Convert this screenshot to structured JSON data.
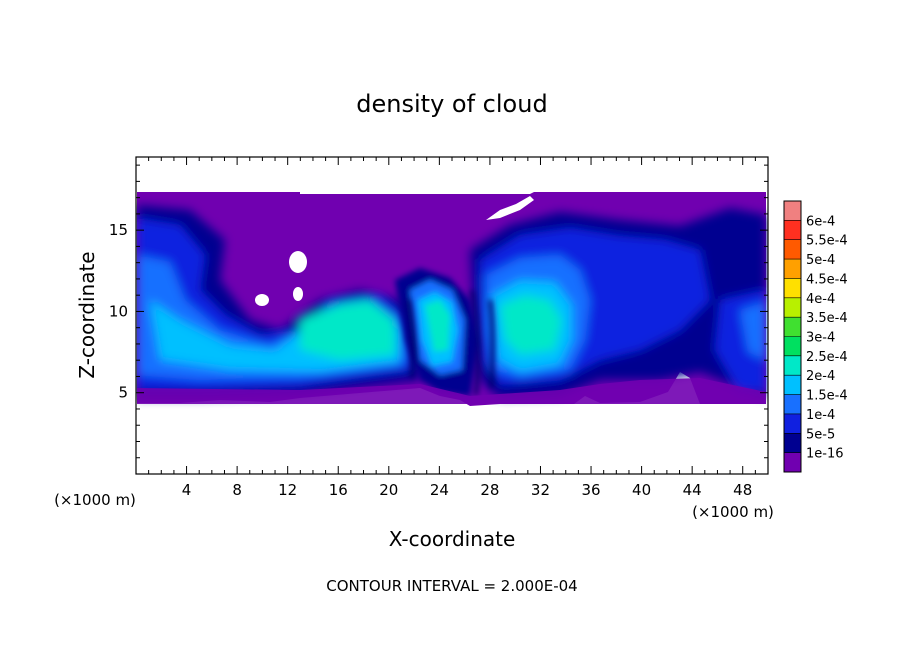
{
  "chart_data": {
    "type": "heatmap",
    "title": "density of cloud",
    "xlabel": "X-coordinate",
    "ylabel": "Z-coordinate",
    "x_unit": "(×1000 m)",
    "x_unit_right": "(×1000 m)",
    "xlim": [
      0,
      50
    ],
    "ylim": [
      0,
      19.5
    ],
    "x_ticks": [
      4,
      8,
      12,
      16,
      20,
      24,
      28,
      32,
      36,
      40,
      44,
      48
    ],
    "y_ticks": [
      5,
      10,
      15
    ],
    "footer": "CONTOUR INTERVAL = 2.000E-04",
    "colorbar": {
      "labels": [
        "6e-4",
        "5.5e-4",
        "5e-4",
        "4.5e-4",
        "4e-4",
        "3.5e-4",
        "3e-4",
        "2.5e-4",
        "2e-4",
        "1.5e-4",
        "1e-4",
        "5e-5",
        "1e-16"
      ],
      "colors": [
        "#f08080",
        "#ff3020",
        "#ff5a00",
        "#ffa000",
        "#ffe000",
        "#b8f000",
        "#40e030",
        "#00e060",
        "#00e8c8",
        "#00c0ff",
        "#1870ff",
        "#1020e0",
        "#000090",
        "#7000b0"
      ]
    },
    "features": {
      "cloud_base_z": 4.5,
      "cloud_top_z": 17.7,
      "max_density_region": "x 13-32, z 6-11 (about 2e-4)"
    }
  }
}
